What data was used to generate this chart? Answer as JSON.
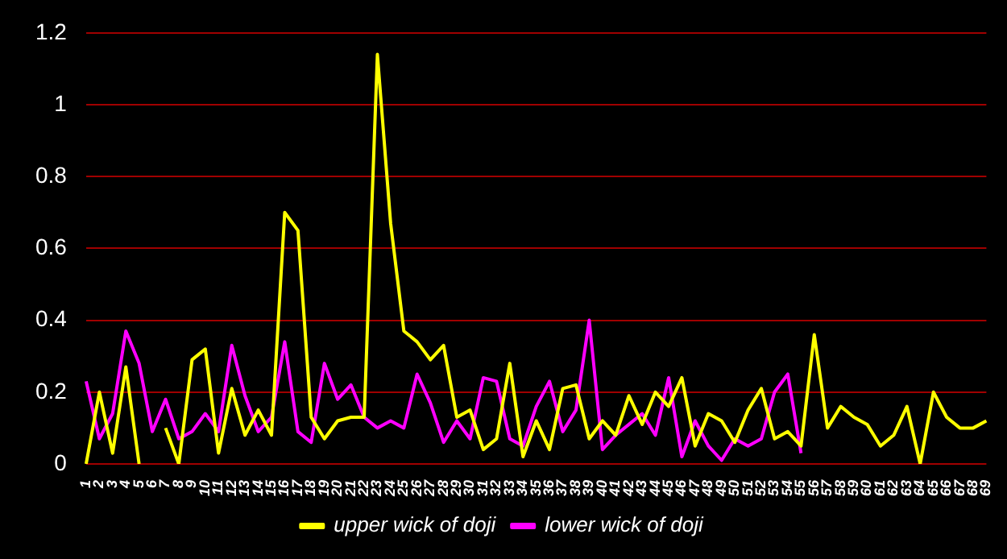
{
  "chart_data": {
    "type": "line",
    "categories": [
      "1",
      "2",
      "3",
      "4",
      "5",
      "6",
      "7",
      "8",
      "9",
      "10",
      "11",
      "12",
      "13",
      "14",
      "15",
      "16",
      "17",
      "18",
      "19",
      "20",
      "21",
      "22",
      "23",
      "24",
      "25",
      "26",
      "27",
      "28",
      "29",
      "30",
      "31",
      "32",
      "33",
      "34",
      "35",
      "36",
      "37",
      "38",
      "39",
      "40",
      "41",
      "42",
      "43",
      "44",
      "45",
      "46",
      "47",
      "48",
      "49",
      "50",
      "51",
      "52",
      "53",
      "54",
      "55",
      "56",
      "57",
      "58",
      "59",
      "60",
      "61",
      "62",
      "63",
      "64",
      "65",
      "66",
      "67",
      "68",
      "69"
    ],
    "series": [
      {
        "name": "upper wick of doji",
        "color": "#ffff00",
        "values": [
          0.0,
          0.2,
          0.03,
          0.27,
          0.0,
          null,
          0.1,
          0.0,
          0.29,
          0.32,
          0.03,
          0.21,
          0.08,
          0.15,
          0.08,
          0.7,
          0.65,
          0.13,
          0.07,
          0.12,
          0.13,
          0.13,
          1.14,
          0.67,
          0.37,
          0.34,
          0.29,
          0.33,
          0.13,
          0.15,
          0.04,
          0.07,
          0.28,
          0.02,
          0.12,
          0.04,
          0.21,
          0.22,
          0.07,
          0.12,
          0.08,
          0.19,
          0.11,
          0.2,
          0.16,
          0.24,
          0.05,
          0.14,
          0.12,
          0.06,
          0.15,
          0.21,
          0.07,
          0.09,
          0.05,
          0.36,
          0.1,
          0.16,
          0.13,
          0.11,
          0.05,
          0.08,
          0.16,
          0.0,
          0.2,
          0.13,
          0.1,
          0.1,
          0.12
        ]
      },
      {
        "name": "lower wick of doji",
        "color": "#ff00ff",
        "values": [
          0.23,
          0.07,
          0.14,
          0.37,
          0.28,
          0.09,
          0.18,
          0.07,
          0.09,
          0.14,
          0.09,
          0.33,
          0.19,
          0.09,
          0.13,
          0.34,
          0.09,
          0.06,
          0.28,
          0.18,
          0.22,
          0.13,
          0.1,
          0.12,
          0.1,
          0.25,
          0.17,
          0.06,
          0.12,
          0.07,
          0.24,
          0.23,
          0.07,
          0.05,
          0.16,
          0.23,
          0.09,
          0.15,
          0.4,
          0.04,
          0.08,
          0.11,
          0.14,
          0.08,
          0.24,
          0.02,
          0.12,
          0.05,
          0.01,
          0.07,
          0.05,
          0.07,
          0.2,
          0.25,
          0.03,
          null,
          null,
          null,
          null,
          null,
          null,
          null,
          null,
          null,
          null,
          null,
          null,
          null,
          null
        ]
      }
    ],
    "ylim": [
      0,
      1.2
    ],
    "yticks": [
      0,
      0.2,
      0.4,
      0.6,
      0.8,
      1,
      1.2
    ],
    "grid": "y",
    "legend": "bottom",
    "marker": "none",
    "line_style": "solid"
  }
}
